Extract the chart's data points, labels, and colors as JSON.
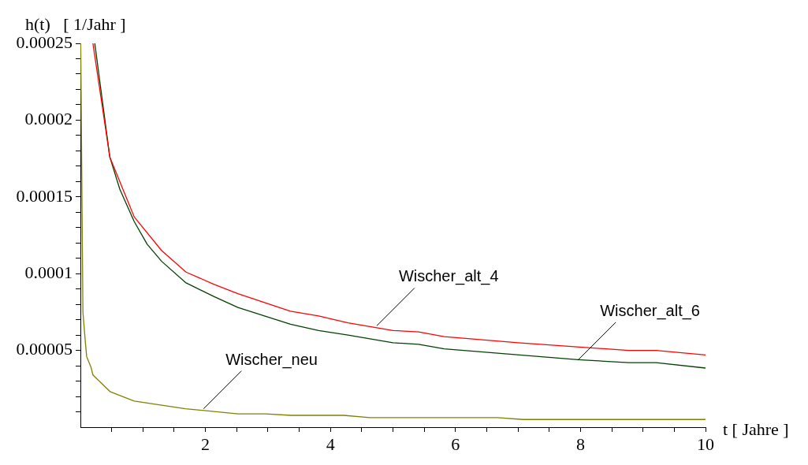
{
  "chart_data": {
    "type": "line",
    "ylabel": "h(t)   [ 1/Jahr ]",
    "xlabel": "t [ Jahre ]",
    "xlim": [
      0,
      10
    ],
    "ylim": [
      0,
      0.00025
    ],
    "xticks": [
      {
        "value": 0.5,
        "label": null
      },
      {
        "value": 1,
        "label": null
      },
      {
        "value": 1.5,
        "label": null
      },
      2,
      {
        "value": 2.5,
        "label": null
      },
      {
        "value": 3,
        "label": null
      },
      {
        "value": 3.5,
        "label": null
      },
      4,
      {
        "value": 4.5,
        "label": null
      },
      {
        "value": 5,
        "label": null
      },
      {
        "value": 5.5,
        "label": null
      },
      6,
      {
        "value": 6.5,
        "label": null
      },
      {
        "value": 7,
        "label": null
      },
      {
        "value": 7.5,
        "label": null
      },
      8,
      {
        "value": 8.5,
        "label": null
      },
      {
        "value": 9,
        "label": null
      },
      {
        "value": 9.5,
        "label": null
      },
      10
    ],
    "yticks": [
      {
        "value": 1e-05,
        "label": null
      },
      {
        "value": 2e-05,
        "label": null
      },
      {
        "value": 3e-05,
        "label": null
      },
      {
        "value": 4e-05,
        "label": null
      },
      {
        "value": 5e-05,
        "label": "0.00005"
      },
      {
        "value": 6e-05,
        "label": null
      },
      {
        "value": 7e-05,
        "label": null
      },
      {
        "value": 8e-05,
        "label": null
      },
      {
        "value": 9e-05,
        "label": null
      },
      0.0001,
      {
        "value": 0.00011,
        "label": null
      },
      {
        "value": 0.00012,
        "label": null
      },
      {
        "value": 0.00013,
        "label": null
      },
      {
        "value": 0.00014,
        "label": null
      },
      0.00015,
      {
        "value": 0.00016,
        "label": null
      },
      {
        "value": 0.00017,
        "label": null
      },
      {
        "value": 0.00018,
        "label": null
      },
      {
        "value": 0.00019,
        "label": null
      },
      0.0002,
      {
        "value": 0.00021,
        "label": null
      },
      {
        "value": 0.00022,
        "label": null
      },
      {
        "value": 0.00023,
        "label": null
      },
      {
        "value": 0.00024,
        "label": null
      },
      0.00025
    ],
    "grid": false,
    "legend": false,
    "marker": "none",
    "line_style": "solid",
    "series": [
      {
        "color": "#ff0000",
        "x": [
          0.2,
          0.47,
          0.86,
          1.3,
          1.69,
          2.14,
          2.52,
          3.36,
          3.81,
          4.28,
          5.0,
          5.41,
          5.82,
          7.0,
          8.77,
          9.21,
          10
        ],
        "values": [
          0.00025,
          0.000176,
          0.000137,
          0.000115,
          0.000101,
          9.3e-05,
          8.7e-05,
          7.55e-05,
          7.25e-05,
          6.8e-05,
          6.3e-05,
          6.2e-05,
          5.9e-05,
          5.5e-05,
          5e-05,
          5e-05,
          4.7e-05
        ]
      },
      {
        "color": "#004000",
        "x": [
          0.23,
          0.47,
          0.63,
          0.86,
          1.07,
          1.3,
          1.69,
          2.14,
          2.52,
          3.36,
          3.81,
          4.28,
          5.0,
          5.41,
          5.82,
          7.96,
          8.77,
          9.21,
          10
        ],
        "values": [
          0.00025,
          0.000176,
          0.000155,
          0.000134,
          0.000119,
          0.000108,
          9.4e-05,
          8.5e-05,
          7.8e-05,
          6.7e-05,
          6.3e-05,
          6e-05,
          5.5e-05,
          5.4e-05,
          5.1e-05,
          4.4e-05,
          4.2e-05,
          4.2e-05,
          3.85e-05
        ]
      },
      {
        "color": "#808000",
        "x": [
          0.005,
          0.04,
          0.08,
          0.1,
          0.17,
          0.2,
          0.48,
          0.86,
          1.68,
          2.52,
          2.96,
          3.37,
          4.21,
          4.63,
          6.67,
          7.08,
          10
        ],
        "values": [
          0.00025,
          7.5e-05,
          5.5e-05,
          4.6e-05,
          3.9e-05,
          3.4e-05,
          2.3e-05,
          1.7e-05,
          1.2e-05,
          8.7e-06,
          8.7e-06,
          7.7e-06,
          7.7e-06,
          6.2e-06,
          6.2e-06,
          5e-06,
          5e-06
        ]
      }
    ],
    "annotations": [
      {
        "text": "Wischer_alt_4",
        "x": 4.74,
        "y": 6.6e-05
      },
      {
        "text": "Wischer_alt_6",
        "x": 7.96,
        "y": 4.37e-05
      },
      {
        "text": "Wischer_neu",
        "x": 1.97,
        "y": 1.2e-05
      }
    ]
  }
}
